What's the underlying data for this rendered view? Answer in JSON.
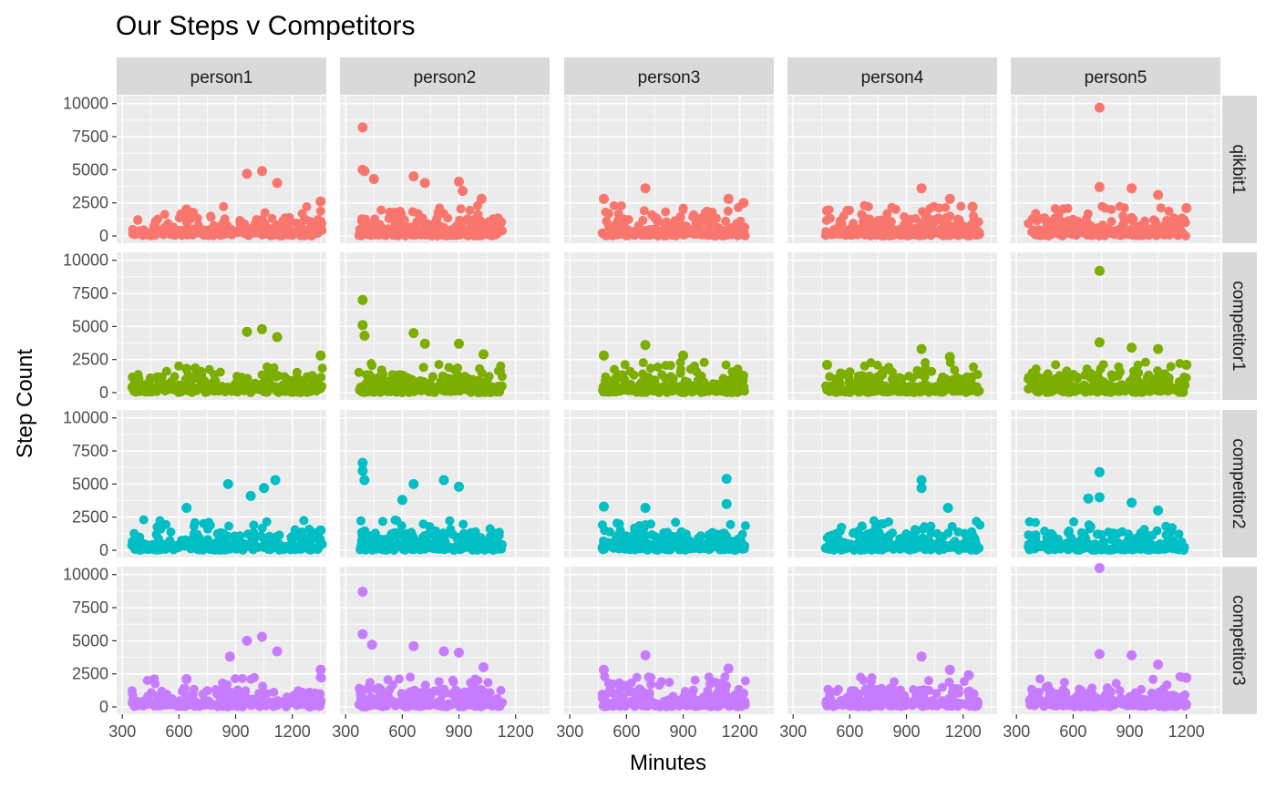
{
  "chart_data": {
    "type": "scatter",
    "title": "Our Steps v Competitors",
    "xlabel": "Minutes",
    "ylabel": "Step Count",
    "xlim": [
      270,
      1380
    ],
    "ylim": [
      -550,
      10600
    ],
    "x_ticks": [
      300,
      600,
      900,
      1200
    ],
    "y_ticks": [
      0,
      2500,
      5000,
      7500,
      10000
    ],
    "grid": true,
    "columns": [
      "person1",
      "person2",
      "person3",
      "person4",
      "person5"
    ],
    "rows": [
      {
        "name": "qikbit1",
        "color": "#F8766D"
      },
      {
        "name": "competitor1",
        "color": "#7CAE00"
      },
      {
        "name": "competitor2",
        "color": "#00BFC4"
      },
      {
        "name": "competitor3",
        "color": "#C77CFF"
      }
    ],
    "column_x_ranges": [
      [
        350,
        1360
      ],
      [
        370,
        1130
      ],
      [
        470,
        1230
      ],
      [
        470,
        1290
      ],
      [
        360,
        1200
      ]
    ],
    "notable_points": [
      {
        "row": 0,
        "col": 0,
        "points": [
          [
            960,
            4700
          ],
          [
            1040,
            4900
          ],
          [
            1120,
            4000
          ],
          [
            1350,
            2600
          ],
          [
            640,
            2000
          ]
        ]
      },
      {
        "row": 0,
        "col": 1,
        "points": [
          [
            390,
            8200
          ],
          [
            390,
            5000
          ],
          [
            400,
            4900
          ],
          [
            450,
            4300
          ],
          [
            660,
            4500
          ],
          [
            720,
            4000
          ],
          [
            900,
            4100
          ],
          [
            920,
            3400
          ],
          [
            1020,
            2800
          ]
        ]
      },
      {
        "row": 0,
        "col": 2,
        "points": [
          [
            700,
            3600
          ],
          [
            480,
            2800
          ],
          [
            1140,
            2800
          ],
          [
            1220,
            2500
          ]
        ]
      },
      {
        "row": 0,
        "col": 3,
        "points": [
          [
            980,
            3600
          ],
          [
            1130,
            2800
          ],
          [
            1250,
            2200
          ],
          [
            480,
            1900
          ]
        ]
      },
      {
        "row": 0,
        "col": 4,
        "points": [
          [
            740,
            9700
          ],
          [
            740,
            3700
          ],
          [
            910,
            3600
          ],
          [
            1050,
            3100
          ],
          [
            1200,
            2100
          ]
        ]
      },
      {
        "row": 1,
        "col": 0,
        "points": [
          [
            960,
            4600
          ],
          [
            1040,
            4800
          ],
          [
            1120,
            4200
          ],
          [
            1350,
            2800
          ],
          [
            640,
            1800
          ]
        ]
      },
      {
        "row": 1,
        "col": 1,
        "points": [
          [
            390,
            7000
          ],
          [
            390,
            5100
          ],
          [
            400,
            4300
          ],
          [
            660,
            4500
          ],
          [
            720,
            3700
          ],
          [
            900,
            3700
          ],
          [
            1030,
            2900
          ]
        ]
      },
      {
        "row": 1,
        "col": 2,
        "points": [
          [
            700,
            3600
          ],
          [
            480,
            2800
          ],
          [
            900,
            2800
          ]
        ]
      },
      {
        "row": 1,
        "col": 3,
        "points": [
          [
            980,
            3300
          ],
          [
            1130,
            2700
          ],
          [
            480,
            2100
          ]
        ]
      },
      {
        "row": 1,
        "col": 4,
        "points": [
          [
            740,
            9200
          ],
          [
            740,
            3800
          ],
          [
            910,
            3400
          ],
          [
            1050,
            3300
          ],
          [
            1200,
            2100
          ]
        ]
      },
      {
        "row": 2,
        "col": 0,
        "points": [
          [
            860,
            5000
          ],
          [
            1110,
            5300
          ],
          [
            1050,
            4700
          ],
          [
            980,
            4100
          ],
          [
            640,
            3200
          ],
          [
            1350,
            1500
          ]
        ]
      },
      {
        "row": 2,
        "col": 1,
        "points": [
          [
            390,
            6600
          ],
          [
            390,
            6000
          ],
          [
            400,
            5300
          ],
          [
            660,
            5000
          ],
          [
            820,
            5300
          ],
          [
            900,
            4800
          ],
          [
            600,
            3800
          ]
        ]
      },
      {
        "row": 2,
        "col": 2,
        "points": [
          [
            1130,
            5400
          ],
          [
            1130,
            3500
          ],
          [
            480,
            3300
          ],
          [
            700,
            3200
          ]
        ]
      },
      {
        "row": 2,
        "col": 3,
        "points": [
          [
            980,
            5300
          ],
          [
            980,
            4700
          ],
          [
            1120,
            3200
          ]
        ]
      },
      {
        "row": 2,
        "col": 4,
        "points": [
          [
            740,
            5900
          ],
          [
            740,
            4000
          ],
          [
            680,
            3900
          ],
          [
            910,
            3600
          ],
          [
            1050,
            3000
          ]
        ]
      },
      {
        "row": 3,
        "col": 0,
        "points": [
          [
            960,
            5000
          ],
          [
            1040,
            5300
          ],
          [
            1120,
            4200
          ],
          [
            870,
            3800
          ],
          [
            1350,
            2800
          ],
          [
            640,
            2100
          ]
        ]
      },
      {
        "row": 3,
        "col": 1,
        "points": [
          [
            390,
            8700
          ],
          [
            390,
            5500
          ],
          [
            440,
            4700
          ],
          [
            660,
            4600
          ],
          [
            820,
            4200
          ],
          [
            900,
            4100
          ],
          [
            1030,
            3000
          ]
        ]
      },
      {
        "row": 3,
        "col": 2,
        "points": [
          [
            700,
            3900
          ],
          [
            480,
            2800
          ],
          [
            1140,
            2900
          ]
        ]
      },
      {
        "row": 3,
        "col": 3,
        "points": [
          [
            980,
            3800
          ],
          [
            1130,
            2800
          ],
          [
            1230,
            2400
          ]
        ]
      },
      {
        "row": 3,
        "col": 4,
        "points": [
          [
            740,
            10500
          ],
          [
            740,
            4000
          ],
          [
            910,
            3900
          ],
          [
            1050,
            3200
          ],
          [
            1200,
            2200
          ]
        ]
      }
    ]
  }
}
